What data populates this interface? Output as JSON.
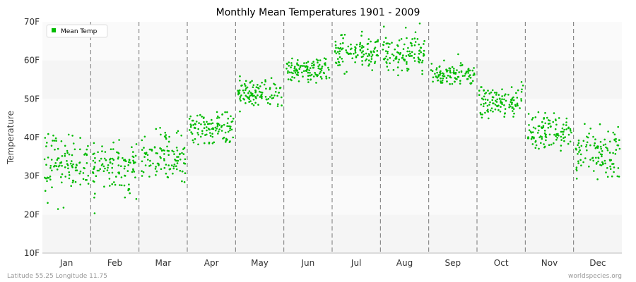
{
  "chart_data": {
    "type": "scatter",
    "title": "Monthly Mean Temperatures 1901 - 2009",
    "ylabel": "Temperature",
    "xlabel": "",
    "ylim": [
      10,
      70
    ],
    "yticks": [
      {
        "value": 10,
        "label": "10F"
      },
      {
        "value": 20,
        "label": "20F"
      },
      {
        "value": 30,
        "label": "30F"
      },
      {
        "value": 40,
        "label": "40F"
      },
      {
        "value": 50,
        "label": "50F"
      },
      {
        "value": 60,
        "label": "60F"
      },
      {
        "value": 70,
        "label": "70F"
      }
    ],
    "categories": [
      "Jan",
      "Feb",
      "Mar",
      "Apr",
      "May",
      "Jun",
      "Jul",
      "Aug",
      "Sep",
      "Oct",
      "Nov",
      "Dec"
    ],
    "grid": true,
    "legend_position": "top-left",
    "series": [
      {
        "name": "Mean Temp",
        "color": "#00bb00",
        "years": "1901-2009",
        "points_per_month": 109,
        "month_stats": [
          {
            "month": "Jan",
            "mean": 33,
            "min": 21,
            "max": 41
          },
          {
            "month": "Feb",
            "mean": 32,
            "min": 20,
            "max": 40
          },
          {
            "month": "Mar",
            "mean": 35.5,
            "min": 27,
            "max": 43
          },
          {
            "month": "Apr",
            "mean": 42.5,
            "min": 38,
            "max": 47
          },
          {
            "month": "May",
            "mean": 51.5,
            "min": 46,
            "max": 56
          },
          {
            "month": "Jun",
            "mean": 57.5,
            "min": 54,
            "max": 62
          },
          {
            "month": "Jul",
            "mean": 62.5,
            "min": 56,
            "max": 68
          },
          {
            "month": "Aug",
            "mean": 62,
            "min": 56,
            "max": 70
          },
          {
            "month": "Sep",
            "mean": 56.5,
            "min": 53,
            "max": 62
          },
          {
            "month": "Oct",
            "mean": 49,
            "min": 44,
            "max": 55
          },
          {
            "month": "Nov",
            "mean": 41.5,
            "min": 36,
            "max": 47
          },
          {
            "month": "Dec",
            "mean": 36,
            "min": 28,
            "max": 45
          }
        ]
      }
    ]
  },
  "footer": {
    "left": "Latitude 55.25 Longitude 11.75",
    "right": "worldspecies.org"
  }
}
